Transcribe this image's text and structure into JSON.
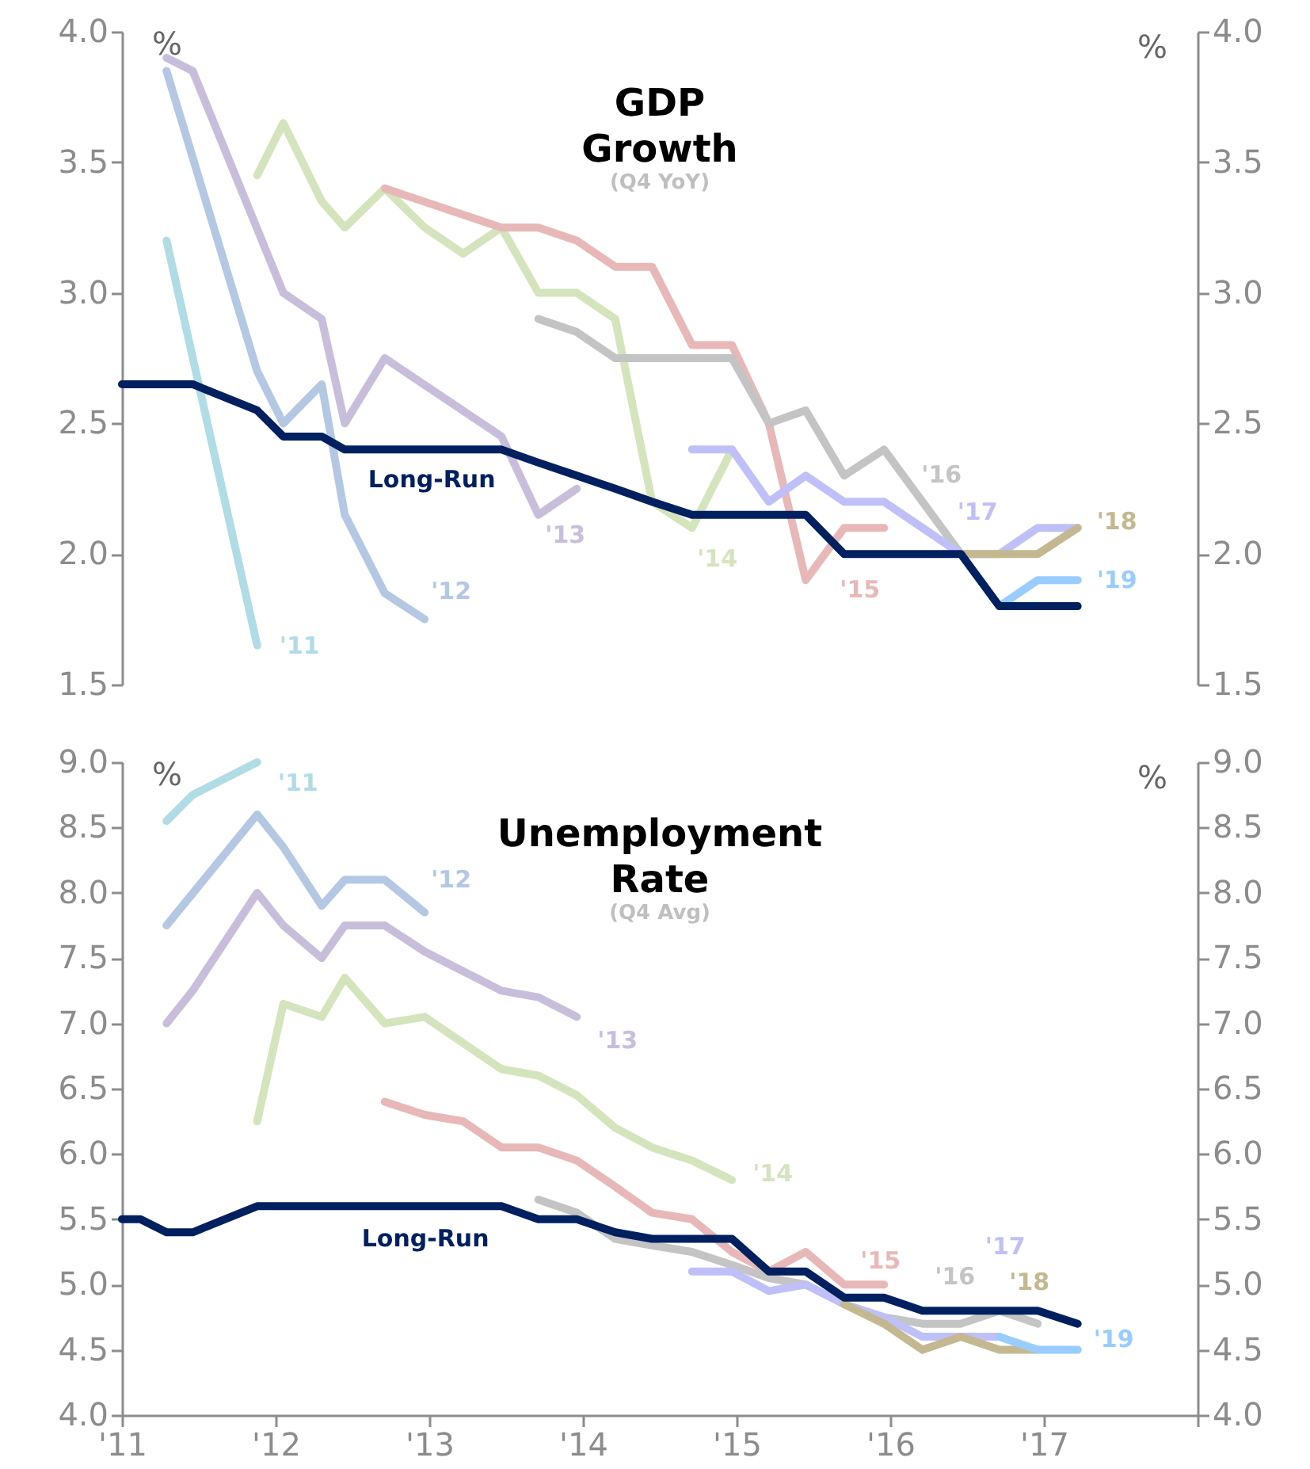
{
  "chart_data": [
    {
      "type": "line",
      "title": "GDP Growth",
      "subtitle": "(Q4 YoY)",
      "ylabel": "%",
      "y2label": "%",
      "xlim": [
        2011,
        2018
      ],
      "ylim": [
        1.5,
        4
      ],
      "yticks": [
        1.5,
        {
          "value": 2,
          "label": "2.0"
        },
        2.5,
        {
          "value": 3,
          "label": "3.0"
        },
        3.5,
        {
          "value": 4,
          "label": "4.0"
        }
      ],
      "y2lim": [
        1.5,
        4
      ],
      "y2ticks": [
        1.5,
        {
          "value": 2,
          "label": "2.0"
        },
        2.5,
        {
          "value": 3,
          "label": "3.0"
        },
        3.5,
        {
          "value": 4,
          "label": "4.0"
        }
      ],
      "tick_labels": "y",
      "grid": false,
      "legend": false,
      "line_style": "solid",
      "marker": "none",
      "series": [
        {
          "name": "'11",
          "color": "#b0dce6",
          "x": [
            2011.29,
            2011.88
          ],
          "values": [
            3.2,
            1.65
          ]
        },
        {
          "name": "'12",
          "color": "#b4c8e4",
          "x": [
            2011.29,
            2011.88,
            2012.05,
            2012.3,
            2012.45,
            2012.71,
            2012.97
          ],
          "values": [
            3.85,
            2.7,
            2.5,
            2.65,
            2.15,
            1.85,
            1.75
          ]
        },
        {
          "name": "'13",
          "color": "#c8bedc",
          "x": [
            2011.29,
            2011.46,
            2012.05,
            2012.3,
            2012.45,
            2012.71,
            2013.47,
            2013.71,
            2013.96
          ],
          "values": [
            3.9,
            3.85,
            3.0,
            2.9,
            2.5,
            2.75,
            2.45,
            2.15,
            2.25
          ]
        },
        {
          "name": "'14",
          "color": "#d4e4bc",
          "x": [
            2011.88,
            2012.05,
            2012.3,
            2012.45,
            2012.71,
            2012.97,
            2013.22,
            2013.47,
            2013.71,
            2013.96,
            2014.21,
            2014.45,
            2014.71,
            2014.97
          ],
          "values": [
            3.45,
            3.65,
            3.35,
            3.25,
            3.4,
            3.25,
            3.15,
            3.25,
            3.0,
            3.0,
            2.9,
            2.2,
            2.1,
            2.4
          ]
        },
        {
          "name": "'15",
          "color": "#e8b8b8",
          "x": [
            2012.71,
            2013.47,
            2013.71,
            2013.96,
            2014.21,
            2014.45,
            2014.71,
            2014.97,
            2015.21,
            2015.45,
            2015.7,
            2015.96
          ],
          "values": [
            3.4,
            3.25,
            3.25,
            3.2,
            3.1,
            3.1,
            2.8,
            2.8,
            2.5,
            1.9,
            2.1,
            2.1
          ]
        },
        {
          "name": "'16",
          "color": "#c4c4c4",
          "x": [
            2013.71,
            2013.96,
            2014.21,
            2014.45,
            2014.71,
            2014.97,
            2015.21,
            2015.45,
            2015.7,
            2015.96,
            2016.21,
            2016.46
          ],
          "values": [
            2.9,
            2.85,
            2.75,
            2.75,
            2.75,
            2.75,
            2.5,
            2.55,
            2.3,
            2.4,
            2.2,
            2.0
          ]
        },
        {
          "name": "'17",
          "color": "#c0c0f8",
          "x": [
            2014.71,
            2014.97,
            2015.21,
            2015.45,
            2015.7,
            2015.96,
            2016.21,
            2016.46,
            2016.71,
            2016.96,
            2017.22
          ],
          "values": [
            2.4,
            2.4,
            2.2,
            2.3,
            2.2,
            2.2,
            2.1,
            2.0,
            2.0,
            2.1,
            2.1
          ]
        },
        {
          "name": "'18",
          "color": "#c4b890",
          "x": [
            2016.46,
            2016.71,
            2016.96,
            2017.22
          ],
          "values": [
            2.0,
            2.0,
            2.0,
            2.1
          ]
        },
        {
          "name": "'19",
          "color": "#99ccff",
          "x": [
            2016.71,
            2016.96,
            2017.22
          ],
          "values": [
            1.8,
            1.9,
            1.9
          ]
        },
        {
          "name": "Long-Run",
          "color": "#002060",
          "x": [
            2011,
            2011.29,
            2011.46,
            2011.88,
            2012.05,
            2012.3,
            2012.45,
            2012.71,
            2012.97,
            2013.22,
            2013.47,
            2013.71,
            2013.96,
            2014.21,
            2014.45,
            2014.71,
            2014.97,
            2015.21,
            2015.45,
            2015.7,
            2015.96,
            2016.21,
            2016.46,
            2016.71,
            2016.96,
            2017.22
          ],
          "values": [
            2.65,
            2.65,
            2.65,
            2.55,
            2.45,
            2.45,
            2.4,
            2.4,
            2.4,
            2.4,
            2.4,
            2.35,
            2.3,
            2.25,
            2.2,
            2.15,
            2.15,
            2.15,
            2.15,
            2.0,
            2.0,
            2.0,
            2.0,
            1.8,
            1.8,
            1.8
          ]
        }
      ]
    },
    {
      "type": "line",
      "title": "Unemployment Rate",
      "subtitle": "(Q4 Avg)",
      "ylabel": "%",
      "y2label": "%",
      "xlim": [
        2011,
        2018
      ],
      "xticks": [
        {
          "value": 2011,
          "label": "'11"
        },
        {
          "value": 2012,
          "label": "'12"
        },
        {
          "value": 2013,
          "label": "'13"
        },
        {
          "value": 2014,
          "label": "'14"
        },
        {
          "value": 2015,
          "label": "'15"
        },
        {
          "value": 2016,
          "label": "'16"
        },
        {
          "value": 2017,
          "label": "'17"
        },
        {
          "value": 2018,
          "label": null
        }
      ],
      "ylim": [
        4,
        9
      ],
      "yticks": [
        {
          "value": 4,
          "label": "4.0"
        },
        4.5,
        {
          "value": 5,
          "label": "5.0"
        },
        5.5,
        {
          "value": 6,
          "label": "6.0"
        },
        6.5,
        {
          "value": 7,
          "label": "7.0"
        },
        7.5,
        {
          "value": 8,
          "label": "8.0"
        },
        8.5,
        {
          "value": 9,
          "label": "9.0"
        }
      ],
      "y2lim": [
        4,
        9
      ],
      "y2ticks": [
        {
          "value": 4,
          "label": "4.0"
        },
        4.5,
        {
          "value": 5,
          "label": "5.0"
        },
        5.5,
        {
          "value": 6,
          "label": "6.0"
        },
        6.5,
        {
          "value": 7,
          "label": "7.0"
        },
        7.5,
        {
          "value": 8,
          "label": "8.0"
        },
        8.5,
        {
          "value": 9,
          "label": "9.0"
        }
      ],
      "grid": false,
      "legend": false,
      "line_style": "solid",
      "marker": "none",
      "series": [
        {
          "name": "'11",
          "color": "#b0dce6",
          "x": [
            2011.29,
            2011.46,
            2011.88
          ],
          "values": [
            8.55,
            8.75,
            9.0
          ]
        },
        {
          "name": "'12",
          "color": "#b4c8e4",
          "x": [
            2011.29,
            2011.88,
            2012.05,
            2012.3,
            2012.45,
            2012.71,
            2012.97
          ],
          "values": [
            7.75,
            8.6,
            8.35,
            7.9,
            8.1,
            8.1,
            7.85
          ]
        },
        {
          "name": "'13",
          "color": "#c8bedc",
          "x": [
            2011.29,
            2011.46,
            2011.88,
            2012.05,
            2012.3,
            2012.45,
            2012.71,
            2012.97,
            2013.22,
            2013.47,
            2013.71,
            2013.96
          ],
          "values": [
            7.0,
            7.25,
            8.0,
            7.75,
            7.5,
            7.75,
            7.75,
            7.55,
            7.4,
            7.25,
            7.2,
            7.05
          ]
        },
        {
          "name": "'14",
          "color": "#d4e4bc",
          "x": [
            2011.88,
            2012.05,
            2012.3,
            2012.45,
            2012.71,
            2012.97,
            2013.22,
            2013.47,
            2013.71,
            2013.96,
            2014.21,
            2014.45,
            2014.71,
            2014.97
          ],
          "values": [
            6.25,
            7.15,
            7.05,
            7.35,
            7.0,
            7.05,
            6.85,
            6.65,
            6.6,
            6.45,
            6.2,
            6.05,
            5.95,
            5.8
          ]
        },
        {
          "name": "'15",
          "color": "#e8b8b8",
          "x": [
            2012.71,
            2012.97,
            2013.22,
            2013.47,
            2013.71,
            2013.96,
            2014.21,
            2014.45,
            2014.71,
            2014.97,
            2015.21,
            2015.45,
            2015.7,
            2015.96
          ],
          "values": [
            6.4,
            6.3,
            6.25,
            6.05,
            6.05,
            5.95,
            5.75,
            5.55,
            5.5,
            5.25,
            5.1,
            5.25,
            5.0,
            5.0
          ]
        },
        {
          "name": "'16",
          "color": "#c4c4c4",
          "x": [
            2013.71,
            2013.96,
            2014.21,
            2014.45,
            2014.71,
            2014.97,
            2015.21,
            2015.45,
            2015.7,
            2015.96,
            2016.21,
            2016.46,
            2016.71,
            2016.96
          ],
          "values": [
            5.65,
            5.55,
            5.35,
            5.3,
            5.25,
            5.15,
            5.05,
            5.0,
            4.85,
            4.75,
            4.7,
            4.7,
            4.8,
            4.7
          ]
        },
        {
          "name": "'17",
          "color": "#c0c0f8",
          "x": [
            2014.71,
            2014.97,
            2015.21,
            2015.45,
            2015.7,
            2015.96,
            2016.21,
            2016.46,
            2016.71
          ],
          "values": [
            5.1,
            5.1,
            4.95,
            5.0,
            4.85,
            4.75,
            4.6,
            4.6,
            4.6
          ]
        },
        {
          "name": "'18",
          "color": "#c4b890",
          "x": [
            2015.7,
            2015.96,
            2016.21,
            2016.46,
            2016.71,
            2016.96
          ],
          "values": [
            4.85,
            4.7,
            4.5,
            4.6,
            4.5,
            4.5
          ]
        },
        {
          "name": "'19",
          "color": "#99ccff",
          "x": [
            2016.71,
            2016.96,
            2017.22
          ],
          "values": [
            4.6,
            4.5,
            4.5
          ]
        },
        {
          "name": "Long-Run",
          "color": "#002060",
          "x": [
            2011,
            2011.12,
            2011.29,
            2011.46,
            2011.88,
            2012.05,
            2012.3,
            2012.45,
            2012.71,
            2012.97,
            2013.22,
            2013.47,
            2013.71,
            2013.96,
            2014.21,
            2014.45,
            2014.71,
            2014.97,
            2015.21,
            2015.45,
            2015.7,
            2015.96,
            2016.21,
            2016.46,
            2016.71,
            2016.96,
            2017.22
          ],
          "values": [
            5.5,
            5.5,
            5.4,
            5.4,
            5.6,
            5.6,
            5.6,
            5.6,
            5.6,
            5.6,
            5.6,
            5.6,
            5.5,
            5.5,
            5.4,
            5.35,
            5.35,
            5.35,
            5.1,
            5.1,
            4.9,
            4.9,
            4.8,
            4.8,
            4.8,
            4.8,
            4.7
          ]
        }
      ]
    }
  ]
}
